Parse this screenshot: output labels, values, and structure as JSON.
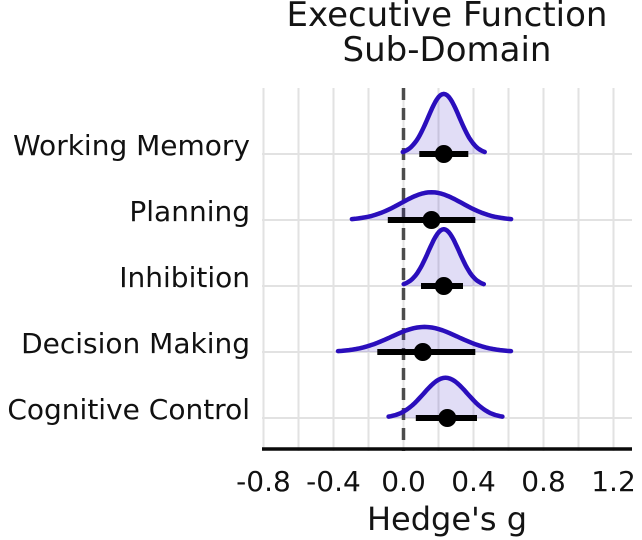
{
  "title": {
    "line1": "Executive Function",
    "line2": "Sub-Domain",
    "full": "Executive Function Sub-Domain"
  },
  "chart_data": {
    "type": "area",
    "subtype": "ridgeline-density-forest-plot",
    "title": "Executive Function Sub-Domain",
    "xlabel": "Hedge's g",
    "xlim": [
      -0.81,
      1.31
    ],
    "x_tick_values": [
      -0.8,
      -0.4,
      0.0,
      0.4,
      0.8,
      1.2
    ],
    "x_tick_labels": [
      "-0.8",
      "-0.4",
      "0.0",
      "0.4",
      "0.8",
      "1.2"
    ],
    "grid_x_values": [
      -0.8,
      -0.6,
      -0.4,
      -0.2,
      0.0,
      0.2,
      0.4,
      0.6,
      0.8,
      1.0,
      1.2
    ],
    "grid": true,
    "legend": "none",
    "reference_line_x": 0.0,
    "categories": [
      "Working Memory",
      "Planning",
      "Inhibition",
      "Decision Making",
      "Cognitive Control"
    ],
    "series": [
      {
        "label": "Working Memory",
        "point_estimate": 0.23,
        "ci_95": [
          0.09,
          0.37
        ],
        "density": {
          "mean": 0.23,
          "sd": 0.09,
          "rel_peak_height": 0.91
        }
      },
      {
        "label": "Planning",
        "point_estimate": 0.16,
        "ci_95": [
          -0.09,
          0.41
        ],
        "density": {
          "mean": 0.16,
          "sd": 0.175,
          "rel_peak_height": 0.42
        }
      },
      {
        "label": "Inhibition",
        "point_estimate": 0.23,
        "ci_95": [
          0.1,
          0.34
        ],
        "density": {
          "mean": 0.23,
          "sd": 0.088,
          "rel_peak_height": 0.86
        }
      },
      {
        "label": "Decision Making",
        "point_estimate": 0.11,
        "ci_95": [
          -0.15,
          0.41
        ],
        "density": {
          "mean": 0.12,
          "sd": 0.19,
          "rel_peak_height": 0.38
        }
      },
      {
        "label": "Cognitive Control",
        "point_estimate": 0.25,
        "ci_95": [
          0.07,
          0.42
        ],
        "density": {
          "mean": 0.24,
          "sd": 0.125,
          "rel_peak_height": 0.61
        }
      }
    ],
    "colors": {
      "density_stroke": "#2a0ebc",
      "density_fill": "rgba(42,14,188,0.14)",
      "point": "#000000",
      "interval": "#000000",
      "reference_line": "#4c4c4c",
      "grid": "#e2e2e2",
      "axis": "#0a0a0a",
      "text": "#111111",
      "background": "#ffffff"
    }
  }
}
